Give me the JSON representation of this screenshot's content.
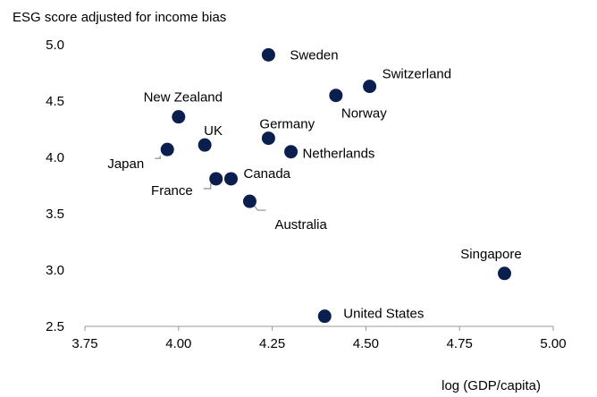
{
  "chart_data": {
    "type": "scatter",
    "title": "ESG score adjusted for income bias",
    "xlabel": "log (GDP/capita)",
    "ylabel": "",
    "xlim": [
      3.75,
      5.0
    ],
    "ylim": [
      2.5,
      5.0
    ],
    "x_ticks": [
      "3.75",
      "4.00",
      "4.25",
      "4.50",
      "4.75",
      "5.00"
    ],
    "y_ticks": [
      "2.5",
      "3.0",
      "3.5",
      "4.0",
      "4.5",
      "5.0"
    ],
    "grid": false,
    "points": [
      {
        "id": "sweden",
        "label": "Sweden",
        "x": 4.24,
        "y": 4.91
      },
      {
        "id": "switzerland",
        "label": "Switzerland",
        "x": 4.51,
        "y": 4.63
      },
      {
        "id": "norway",
        "label": "Norway",
        "x": 4.42,
        "y": 4.55
      },
      {
        "id": "new-zealand",
        "label": "New Zealand",
        "x": 4.0,
        "y": 4.36
      },
      {
        "id": "germany",
        "label": "Germany",
        "x": 4.24,
        "y": 4.17
      },
      {
        "id": "uk",
        "label": "UK",
        "x": 4.07,
        "y": 4.11
      },
      {
        "id": "japan",
        "label": "Japan",
        "x": 3.97,
        "y": 4.07
      },
      {
        "id": "netherlands",
        "label": "Netherlands",
        "x": 4.3,
        "y": 4.05
      },
      {
        "id": "france",
        "label": "France",
        "x": 4.1,
        "y": 3.81
      },
      {
        "id": "canada",
        "label": "Canada",
        "x": 4.14,
        "y": 3.81
      },
      {
        "id": "australia",
        "label": "Australia",
        "x": 4.19,
        "y": 3.61
      },
      {
        "id": "singapore",
        "label": "Singapore",
        "x": 4.87,
        "y": 2.97
      },
      {
        "id": "united-states",
        "label": "United States",
        "x": 4.39,
        "y": 2.59
      }
    ]
  }
}
